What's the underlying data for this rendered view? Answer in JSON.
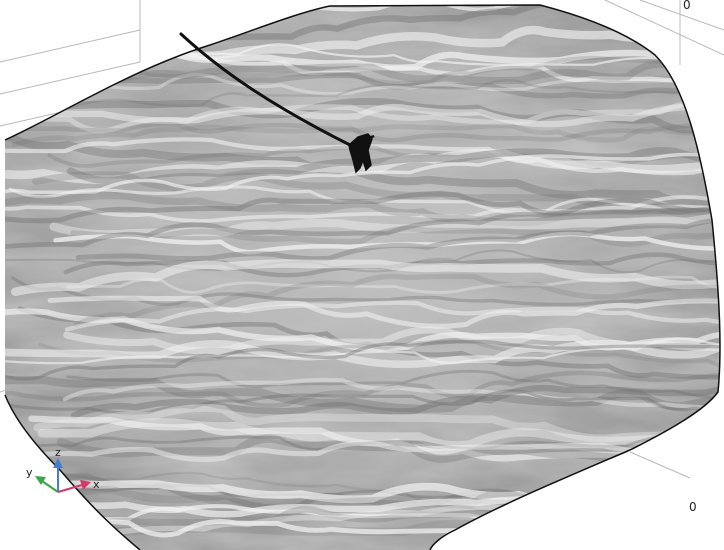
{
  "viewport": {
    "background": "#ffffff",
    "surface_color": "#9a9a9a",
    "surface_highlight": "#f2f2f2",
    "surface_shadow": "#6f6f6f",
    "outline_color": "#111111",
    "grid_color": "#b8b8b8"
  },
  "axis_ticks": {
    "right_front_tick": "0",
    "top_right_tick": "0"
  },
  "triad": {
    "z_label": "z",
    "y_label": "y",
    "x_label": "x",
    "z_color": "#3f7fd6",
    "y_color": "#3aa64a",
    "x_color": "#d23a6a"
  },
  "objects": {
    "cable_icon": "tether-line",
    "vehicle_icon": "probe-object"
  }
}
